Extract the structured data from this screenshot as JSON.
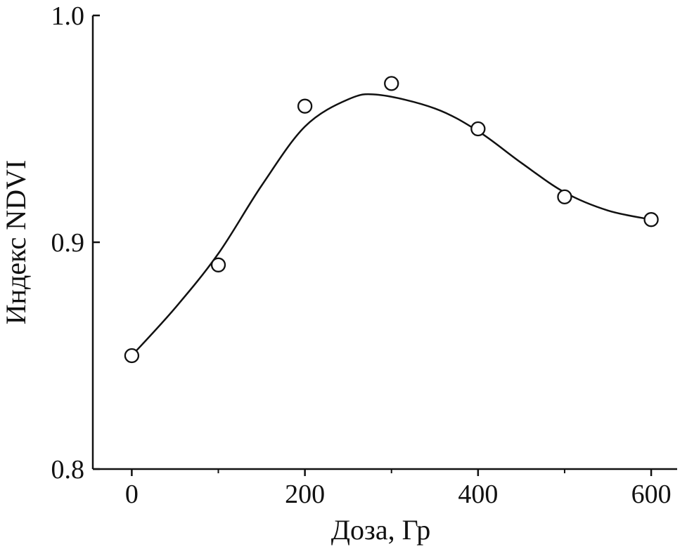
{
  "chart_data": {
    "type": "scatter",
    "title": "",
    "xlabel": "Доза, Гр",
    "ylabel": "Индекс NDVI",
    "xlim": [
      -45,
      630
    ],
    "ylim": [
      0.8,
      1.0
    ],
    "xticks": [
      0,
      200,
      400,
      600
    ],
    "xtick_labels": [
      "0",
      "200",
      "400",
      "600"
    ],
    "xticks_minor": [
      100,
      300,
      500
    ],
    "yticks": [
      0.8,
      0.9,
      1.0
    ],
    "ytick_labels": [
      "0.8",
      "0.9",
      "1.0"
    ],
    "grid": false,
    "legend": false,
    "marker": "open-circle",
    "series": [
      {
        "style": "markers",
        "x": [
          0,
          100,
          200,
          300,
          400,
          500,
          600
        ],
        "y": [
          0.85,
          0.89,
          0.96,
          0.97,
          0.95,
          0.92,
          0.91
        ]
      },
      {
        "style": "smooth-line",
        "x": [
          0,
          50,
          100,
          150,
          200,
          250,
          285,
          350,
          400,
          450,
          500,
          550,
          600
        ],
        "y": [
          0.85,
          0.871,
          0.895,
          0.925,
          0.951,
          0.963,
          0.965,
          0.959,
          0.949,
          0.935,
          0.922,
          0.914,
          0.91
        ]
      }
    ],
    "color": "#111111"
  }
}
